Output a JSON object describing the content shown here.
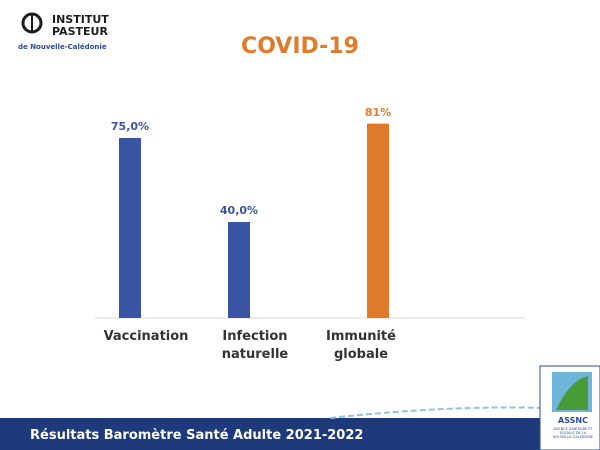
{
  "logo": {
    "name": "INSTITUT PASTEUR",
    "subtitle": "de Nouvelle-Calédonie"
  },
  "chart_data": {
    "type": "bar",
    "title": "COVID-19",
    "categories": [
      "Vaccination",
      "Infection naturelle",
      "Immunité globale"
    ],
    "values": [
      75,
      40,
      81
    ],
    "value_labels": [
      "75,0%",
      "40,0%",
      "81%"
    ],
    "colors": [
      "#3a54a4",
      "#3a54a4",
      "#e07b2b"
    ],
    "grid": false
  },
  "footer": {
    "text": "Résultats Baromètre Santé Adulte 2021-2022"
  },
  "badge": {
    "name": "ASSNC",
    "subtitle": "AGENCE SANITAIRE ET SOCIALE DE LA NOUVELLE-CALÉDONIE"
  }
}
